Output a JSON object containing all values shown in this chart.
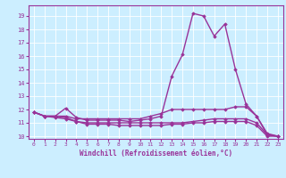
{
  "xlabel": "Windchill (Refroidissement éolien,°C)",
  "bg_color": "#cceeff",
  "line_color": "#993399",
  "xlim": [
    -0.5,
    23.5
  ],
  "ylim": [
    9.8,
    19.8
  ],
  "yticks": [
    10,
    11,
    12,
    13,
    14,
    15,
    16,
    17,
    18,
    19
  ],
  "xticks": [
    0,
    1,
    2,
    3,
    4,
    5,
    6,
    7,
    8,
    9,
    10,
    11,
    12,
    13,
    14,
    15,
    16,
    17,
    18,
    19,
    20,
    21,
    22,
    23
  ],
  "series": [
    {
      "x": [
        0,
        1,
        2,
        3,
        4,
        5,
        6,
        7,
        8,
        9,
        10,
        11,
        12,
        13,
        14,
        15,
        16,
        17,
        18,
        19,
        20,
        21,
        22,
        23
      ],
      "y": [
        11.8,
        11.5,
        11.5,
        12.1,
        11.4,
        11.2,
        11.2,
        11.2,
        11.2,
        11.1,
        11.2,
        11.3,
        11.5,
        14.5,
        16.1,
        19.2,
        19.0,
        17.5,
        18.4,
        15.0,
        12.4,
        11.5,
        10.1,
        10.0
      ]
    },
    {
      "x": [
        0,
        1,
        2,
        3,
        4,
        5,
        6,
        7,
        8,
        9,
        10,
        11,
        12,
        13,
        14,
        15,
        16,
        17,
        18,
        19,
        20,
        21,
        22,
        23
      ],
      "y": [
        11.8,
        11.5,
        11.5,
        11.5,
        11.3,
        11.3,
        11.3,
        11.3,
        11.3,
        11.3,
        11.3,
        11.5,
        11.7,
        12.0,
        12.0,
        12.0,
        12.0,
        12.0,
        12.0,
        12.2,
        12.2,
        11.5,
        10.2,
        10.0
      ]
    },
    {
      "x": [
        0,
        1,
        2,
        3,
        4,
        5,
        6,
        7,
        8,
        9,
        10,
        11,
        12,
        13,
        14,
        15,
        16,
        17,
        18,
        19,
        20,
        21,
        22,
        23
      ],
      "y": [
        11.8,
        11.5,
        11.5,
        11.4,
        11.1,
        11.0,
        11.0,
        11.0,
        11.0,
        11.0,
        11.0,
        11.0,
        11.0,
        11.0,
        11.0,
        11.1,
        11.2,
        11.3,
        11.3,
        11.3,
        11.3,
        11.0,
        10.1,
        10.0
      ]
    },
    {
      "x": [
        0,
        1,
        2,
        3,
        4,
        5,
        6,
        7,
        8,
        9,
        10,
        11,
        12,
        13,
        14,
        15,
        16,
        17,
        18,
        19,
        20,
        21,
        22,
        23
      ],
      "y": [
        11.8,
        11.5,
        11.4,
        11.3,
        11.1,
        10.9,
        10.9,
        10.9,
        10.8,
        10.8,
        10.8,
        10.8,
        10.8,
        10.9,
        10.9,
        11.0,
        11.0,
        11.1,
        11.1,
        11.1,
        11.1,
        10.8,
        10.0,
        10.0
      ]
    }
  ]
}
